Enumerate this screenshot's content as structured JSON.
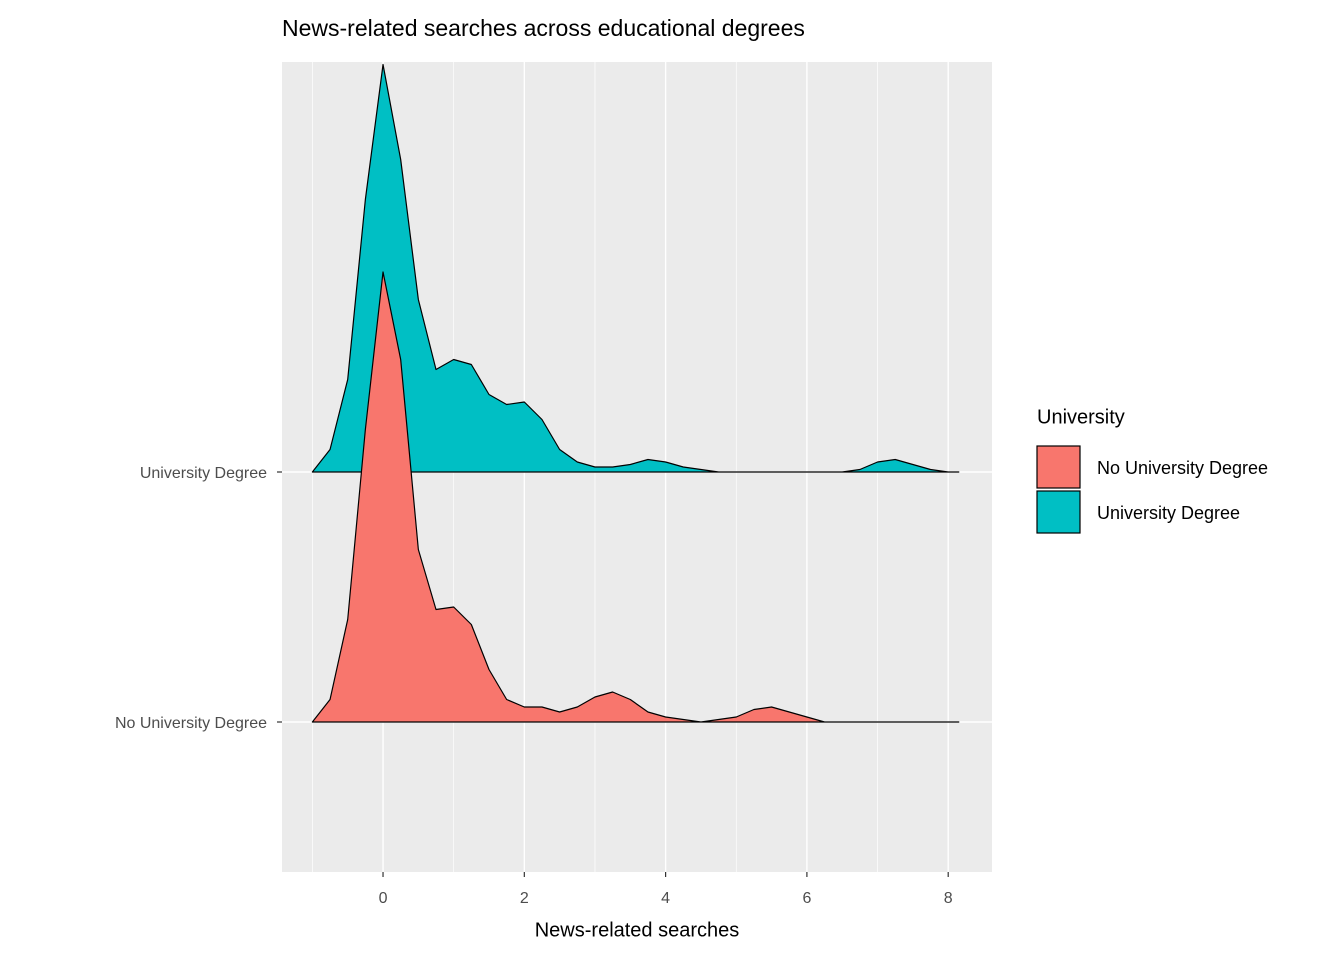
{
  "chart_data": {
    "type": "ridgeline",
    "title": "News-related searches across educational degrees",
    "x_label": "News-related searches",
    "legend_title": "University",
    "legend_position": "right",
    "grid": true,
    "categories": [
      "No University Degree",
      "University Degree"
    ],
    "x": [
      -1,
      -0.75,
      -0.5,
      -0.25,
      0,
      0.25,
      0.5,
      0.75,
      1,
      1.25,
      1.5,
      1.75,
      2,
      2.25,
      2.5,
      2.75,
      3,
      3.25,
      3.5,
      3.75,
      4,
      4.25,
      4.5,
      4.75,
      5,
      5.25,
      5.5,
      5.75,
      6,
      6.25,
      6.5,
      6.75,
      7,
      7.25,
      7.5,
      7.75,
      8,
      8.15
    ],
    "series": [
      {
        "name": "No University Degree",
        "color": "#F8766D",
        "values": [
          0,
          0.09,
          0.41,
          1.17,
          1.8,
          1.45,
          0.69,
          0.45,
          0.46,
          0.39,
          0.21,
          0.09,
          0.06,
          0.06,
          0.04,
          0.06,
          0.1,
          0.12,
          0.09,
          0.04,
          0.02,
          0.01,
          0,
          0.01,
          0.02,
          0.05,
          0.06,
          0.04,
          0.02,
          0,
          0,
          0,
          0,
          0,
          0,
          0,
          0,
          0
        ]
      },
      {
        "name": "University Degree",
        "color": "#00BFC4",
        "values": [
          0,
          0.09,
          0.37,
          1.09,
          1.63,
          1.25,
          0.69,
          0.41,
          0.45,
          0.43,
          0.31,
          0.27,
          0.28,
          0.21,
          0.09,
          0.04,
          0.02,
          0.02,
          0.03,
          0.05,
          0.04,
          0.02,
          0.01,
          0,
          0,
          0,
          0,
          0,
          0,
          0,
          0,
          0.01,
          0.04,
          0.05,
          0.03,
          0.01,
          0,
          0
        ]
      }
    ],
    "xlim": [
      -1.43,
      8.62
    ],
    "xticks": [
      0,
      2,
      4,
      6,
      8
    ],
    "xminorticks": [
      -1,
      1,
      3,
      5,
      7
    ],
    "ylim": [
      -0.6,
      2.64
    ]
  }
}
